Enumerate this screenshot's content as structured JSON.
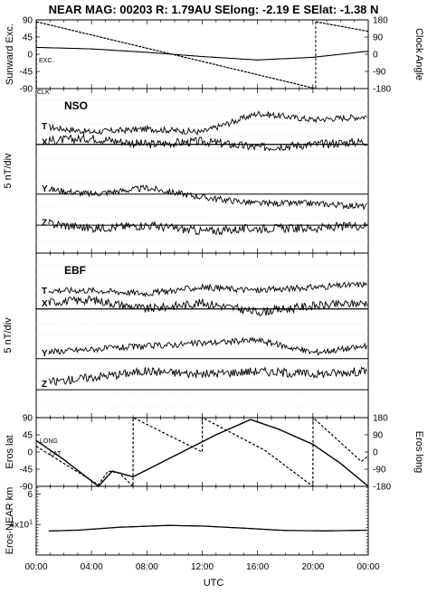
{
  "header": {
    "title": "NEAR MAG: 00203  R: 1.79AU  SElong:   -2.19 E  SElat:   -1.38 N"
  },
  "x_axis": {
    "label": "UTC",
    "ticks": [
      "00:00",
      "04:00",
      "08:00",
      "12:00",
      "16:00",
      "20:00",
      "00:00"
    ]
  },
  "chart_data": [
    {
      "type": "line",
      "panel": "sunward-clock",
      "ylabel_left": "Sunward Exc.",
      "ylabel_right": "Clock Angle",
      "yticks_left": [
        "90",
        "45",
        "0",
        "-45",
        "-90"
      ],
      "yticks_right": [
        "180",
        "90",
        "0",
        "-90",
        "-180"
      ],
      "ylim": [
        -90,
        90
      ],
      "series_labels": [
        "EXC.",
        "CLK"
      ],
      "series": [
        {
          "name": "EXC.",
          "x": [
            0,
            4,
            8,
            12,
            16,
            20,
            24
          ],
          "values": [
            18,
            14,
            5,
            -6,
            -15,
            -8,
            8
          ]
        },
        {
          "name": "CLK",
          "x": [
            0,
            0.01,
            20.2,
            20.21,
            24
          ],
          "values": [
            -180,
            170,
            -180,
            170,
            120
          ]
        }
      ]
    },
    {
      "type": "line",
      "panel": "NSO",
      "label": "NSO",
      "ylabel": "5 nT/div",
      "components": [
        "T",
        "X",
        "Y",
        "Z"
      ],
      "series": [
        {
          "name": "T",
          "x": [
            0,
            4,
            8,
            12,
            16,
            20,
            24
          ],
          "values": [
            3.2,
            3.0,
            3.1,
            3.0,
            3.6,
            3.4,
            3.5
          ]
        },
        {
          "name": "X",
          "x": [
            0,
            4,
            8,
            12,
            16,
            20,
            24
          ],
          "values": [
            2.7,
            2.8,
            2.6,
            2.7,
            2.5,
            2.6,
            2.7
          ]
        },
        {
          "name": "Y",
          "x": [
            0,
            4,
            8,
            12,
            16,
            20,
            24
          ],
          "values": [
            1.2,
            1.0,
            1.2,
            0.9,
            0.7,
            0.7,
            0.6
          ]
        },
        {
          "name": "Z",
          "x": [
            0,
            4,
            8,
            12,
            16,
            20,
            24
          ],
          "values": [
            0.1,
            -0.1,
            0.0,
            -0.2,
            -0.1,
            -0.1,
            0.0
          ]
        }
      ]
    },
    {
      "type": "line",
      "panel": "EBF",
      "label": "EBF",
      "ylabel": "5 nT/div",
      "components": [
        "T",
        "X",
        "Y",
        "Z"
      ],
      "series": [
        {
          "name": "T",
          "x": [
            0,
            4,
            8,
            12,
            16,
            20,
            24
          ],
          "values": [
            3.2,
            3.2,
            3.1,
            3.3,
            3.2,
            3.3,
            3.4
          ]
        },
        {
          "name": "X",
          "x": [
            0,
            4,
            8,
            12,
            16,
            20,
            24
          ],
          "values": [
            2.8,
            2.9,
            2.6,
            2.8,
            2.5,
            2.7,
            2.8
          ]
        },
        {
          "name": "Y",
          "x": [
            0,
            4,
            8,
            12,
            16,
            20,
            24
          ],
          "values": [
            1.2,
            1.3,
            1.4,
            1.5,
            1.6,
            1.2,
            1.4
          ]
        },
        {
          "name": "Z",
          "x": [
            0,
            4,
            8,
            12,
            16,
            20,
            24
          ],
          "values": [
            0.2,
            0.4,
            0.6,
            0.5,
            0.6,
            0.5,
            0.6
          ]
        }
      ]
    },
    {
      "type": "line",
      "panel": "eros-lat-long",
      "ylabel_left": "Eros lat",
      "ylabel_right": "Eros long",
      "yticks_left": [
        "90",
        "45",
        "0",
        "-45",
        "-90"
      ],
      "yticks_right": [
        "180",
        "90",
        "0",
        "-90",
        "-180"
      ],
      "ylim": [
        -90,
        90
      ],
      "series_labels": [
        "LONG",
        "LAT"
      ],
      "series": [
        {
          "name": "LAT",
          "x": [
            0,
            2,
            4.5,
            5.5,
            7,
            10,
            13,
            15.5,
            17.5,
            20,
            22,
            24
          ],
          "values": [
            30,
            -20,
            -90,
            -50,
            -65,
            -10,
            45,
            85,
            60,
            20,
            -30,
            -90
          ]
        },
        {
          "name": "LONG",
          "x": [
            0,
            4.5,
            5.2,
            6,
            7.0,
            7.01,
            12.0,
            12.01,
            16.5,
            20.0,
            20.01,
            23.5,
            24
          ],
          "values": [
            30,
            -172,
            -100,
            -110,
            -180,
            180,
            0,
            180,
            10,
            -180,
            180,
            -50,
            -20
          ]
        }
      ]
    },
    {
      "type": "line",
      "panel": "eros-near-distance",
      "ylabel": "Eros-NEAR km",
      "ytick_labels": [
        "6",
        "4x10",
        "2"
      ],
      "ytick_exponent": "1",
      "ylim": [
        20,
        65
      ],
      "series": [
        {
          "name": "distance",
          "x": [
            0,
            3,
            6,
            9.5,
            12,
            15,
            18,
            21,
            24
          ],
          "values": [
            35.5,
            36.3,
            38.2,
            39.4,
            39.0,
            37.6,
            36.1,
            35.8,
            36.3
          ]
        }
      ]
    }
  ]
}
